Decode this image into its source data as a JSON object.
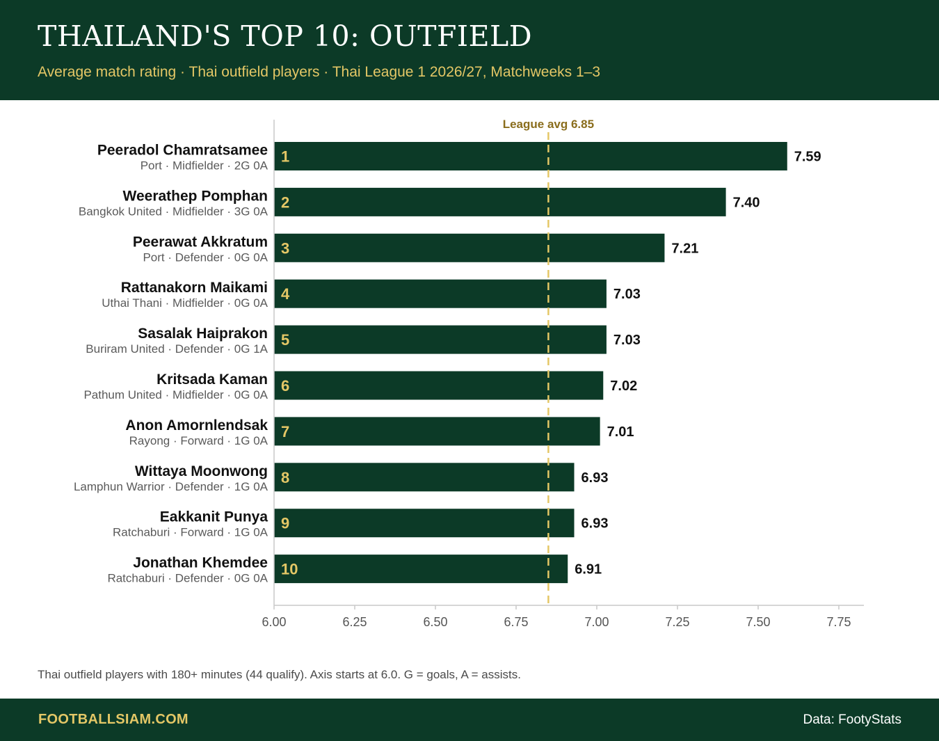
{
  "header": {
    "title": "THAILAND'S TOP 10: OUTFIELD",
    "subtitle": "Average match rating · Thai outfield players · Thai League 1 2026/27, Matchweeks 1–3"
  },
  "footnote": "Thai outfield players with 180+ minutes (44 qualify). Axis starts at 6.0. G = goals, A = assists.",
  "footer": {
    "brand": "FOOTBALLSIAM.COM",
    "source": "Data: FootyStats"
  },
  "colors": {
    "header_bg": "#0c3a27",
    "bar": "#0c3a27",
    "accent": "#e4c766",
    "avg_label": "#8a6d1c"
  },
  "chart_data": {
    "type": "bar",
    "orientation": "horizontal",
    "title": "THAILAND'S TOP 10: OUTFIELD",
    "xlim": [
      6.0,
      7.82
    ],
    "x_ticks": [
      "6.00",
      "6.25",
      "6.50",
      "6.75",
      "7.00",
      "7.25",
      "7.50",
      "7.75"
    ],
    "x_tick_values": [
      6.0,
      6.25,
      6.5,
      6.75,
      7.0,
      7.25,
      7.5,
      7.75
    ],
    "reference_line": {
      "label": "League avg 6.85",
      "value": 6.85
    },
    "grid": false,
    "rows": [
      {
        "rank": "1",
        "name": "Peeradol Chamratsamee",
        "details": "Port · Midfielder · 2G 0A",
        "value": 7.59,
        "value_label": "7.59"
      },
      {
        "rank": "2",
        "name": "Weerathep Pomphan",
        "details": "Bangkok United · Midfielder · 3G 0A",
        "value": 7.4,
        "value_label": "7.40"
      },
      {
        "rank": "3",
        "name": "Peerawat Akkratum",
        "details": "Port · Defender · 0G 0A",
        "value": 7.21,
        "value_label": "7.21"
      },
      {
        "rank": "4",
        "name": "Rattanakorn Maikami",
        "details": "Uthai Thani · Midfielder · 0G 0A",
        "value": 7.03,
        "value_label": "7.03"
      },
      {
        "rank": "5",
        "name": "Sasalak Haiprakon",
        "details": "Buriram United · Defender · 0G 1A",
        "value": 7.03,
        "value_label": "7.03"
      },
      {
        "rank": "6",
        "name": "Kritsada Kaman",
        "details": "Pathum United · Midfielder · 0G 0A",
        "value": 7.02,
        "value_label": "7.02"
      },
      {
        "rank": "7",
        "name": "Anon Amornlendsak",
        "details": "Rayong · Forward · 1G 0A",
        "value": 7.01,
        "value_label": "7.01"
      },
      {
        "rank": "8",
        "name": "Wittaya Moonwong",
        "details": "Lamphun Warrior · Defender · 1G 0A",
        "value": 6.93,
        "value_label": "6.93"
      },
      {
        "rank": "9",
        "name": "Eakkanit Punya",
        "details": "Ratchaburi · Forward · 1G 0A",
        "value": 6.93,
        "value_label": "6.93"
      },
      {
        "rank": "10",
        "name": "Jonathan Khemdee",
        "details": "Ratchaburi · Defender · 0G 0A",
        "value": 6.91,
        "value_label": "6.91"
      }
    ]
  }
}
